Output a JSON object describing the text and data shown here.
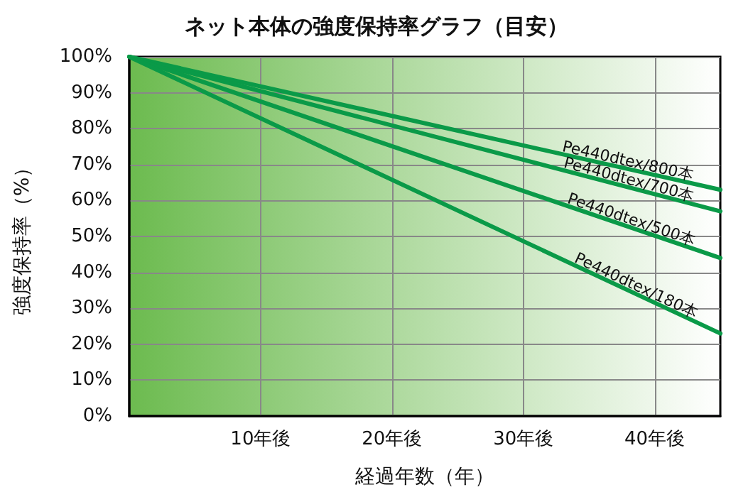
{
  "chart_data": {
    "type": "line",
    "title": "ネット本体の強度保持率グラフ（目安）",
    "xlabel": "経過年数（年）",
    "ylabel": "強度保持率（%）",
    "x": [
      0,
      45
    ],
    "series": [
      {
        "name": "Pe440dtex/800本",
        "color": "#0a9a48",
        "values": [
          100,
          63
        ]
      },
      {
        "name": "Pe440dtex/700本",
        "color": "#0a9a48",
        "values": [
          100,
          57
        ]
      },
      {
        "name": "Pe440dtex/500本",
        "color": "#0a9a48",
        "values": [
          100,
          44
        ]
      },
      {
        "name": "Pe440dtex/180本",
        "color": "#0a9a48",
        "values": [
          100,
          23
        ]
      }
    ],
    "xlim": [
      0,
      45
    ],
    "xticks": [
      {
        "value": 10,
        "label": "10年後"
      },
      {
        "value": 20,
        "label": "20年後"
      },
      {
        "value": 30,
        "label": "30年後"
      },
      {
        "value": 40,
        "label": "40年後"
      }
    ],
    "ylim": [
      0,
      100
    ],
    "yticks": [
      {
        "value": 0,
        "label": "0%"
      },
      {
        "value": 10,
        "label": "10%"
      },
      {
        "value": 20,
        "label": "20%"
      },
      {
        "value": 30,
        "label": "30%"
      },
      {
        "value": 40,
        "label": "40%"
      },
      {
        "value": 50,
        "label": "50%"
      },
      {
        "value": 60,
        "label": "60%"
      },
      {
        "value": 70,
        "label": "70%"
      },
      {
        "value": 80,
        "label": "80%"
      },
      {
        "value": 90,
        "label": "90%"
      },
      {
        "value": 100,
        "label": "100%"
      }
    ],
    "grid": true,
    "legend": false,
    "marker": "none",
    "line_style": "solid"
  }
}
